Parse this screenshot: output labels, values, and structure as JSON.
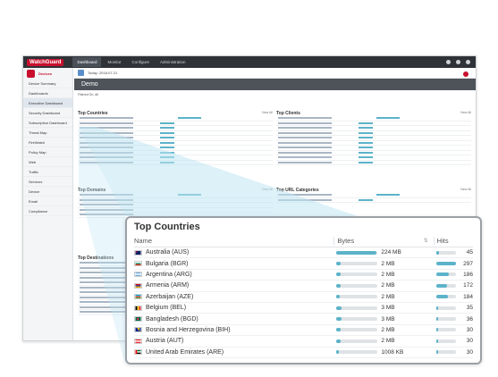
{
  "app": {
    "logo": "WatchGuard",
    "top_tabs": [
      "Dashboard",
      "Monitor",
      "Configure",
      "Administration"
    ],
    "home_label": "Devices",
    "sidebar_items": [
      "Device Summary",
      "Dashboards",
      "Executive Dashboard",
      "Security Dashboard",
      "Subscription Dashboard",
      "Threat Map",
      "FireWatch",
      "Policy Map",
      "Web",
      "Traffic",
      "Services",
      "Device",
      "Email",
      "Compliance"
    ],
    "date_label": "Today: 2018-07-21",
    "page_title": "Demo",
    "filter_text": "Filtered On: All",
    "mini_sections": [
      "Top Countries",
      "Top Clients",
      "Top Domains",
      "Top URL Categories",
      "Top Destinations"
    ],
    "view_all": "View All"
  },
  "panel": {
    "title": "Top Countries",
    "col_name": "Name",
    "col_bytes": "Bytes",
    "col_hits": "Hits",
    "rows": [
      {
        "name": "Australia (AUS)",
        "bytes": "224 MB",
        "bytes_frac": 0.98,
        "hits": "45",
        "hits_frac": 0.15,
        "flag": "aus"
      },
      {
        "name": "Bulgaria (BGR)",
        "bytes": "2 MB",
        "bytes_frac": 0.1,
        "hits": "297",
        "hits_frac": 1.0,
        "flag": "bgr"
      },
      {
        "name": "Argentina (ARG)",
        "bytes": "2 MB",
        "bytes_frac": 0.09,
        "hits": "186",
        "hits_frac": 0.63,
        "flag": "arg"
      },
      {
        "name": "Armenia (ARM)",
        "bytes": "2 MB",
        "bytes_frac": 0.09,
        "hits": "172",
        "hits_frac": 0.58,
        "flag": "arm"
      },
      {
        "name": "Azerbaijan (AZE)",
        "bytes": "2 MB",
        "bytes_frac": 0.08,
        "hits": "184",
        "hits_frac": 0.62,
        "flag": "aze"
      },
      {
        "name": "Belgium (BEL)",
        "bytes": "3 MB",
        "bytes_frac": 0.12,
        "hits": "35",
        "hits_frac": 0.12,
        "flag": "bel"
      },
      {
        "name": "Bangladesh (BGD)",
        "bytes": "3 MB",
        "bytes_frac": 0.12,
        "hits": "36",
        "hits_frac": 0.12,
        "flag": "bgd"
      },
      {
        "name": "Bosnia and Herzegovina (BIH)",
        "bytes": "2 MB",
        "bytes_frac": 0.09,
        "hits": "30",
        "hits_frac": 0.1,
        "flag": "bih"
      },
      {
        "name": "Austria (AUT)",
        "bytes": "2 MB",
        "bytes_frac": 0.09,
        "hits": "30",
        "hits_frac": 0.1,
        "flag": "aut"
      },
      {
        "name": "United Arab Emirates (ARE)",
        "bytes": "1008 KB",
        "bytes_frac": 0.05,
        "hits": "30",
        "hits_frac": 0.1,
        "flag": "are"
      }
    ]
  },
  "colors": {
    "accent": "#5cb3c9",
    "brand": "#c8102e",
    "highlight": "#bfe6f3"
  }
}
